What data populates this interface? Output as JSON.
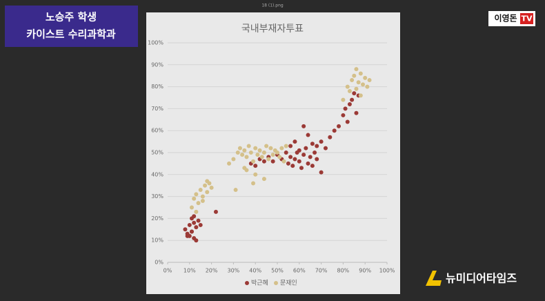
{
  "window_title": "18 (1).png",
  "caption": {
    "name": "노승주 학생",
    "department": "카이스트 수리과학과"
  },
  "channel_logo": {
    "name": "이영돈",
    "tv": "TV"
  },
  "watermark": "뉴미디어타임즈",
  "chart_data": {
    "type": "scatter",
    "title": "국내부재자투표",
    "xlim": [
      0,
      100
    ],
    "ylim": [
      0,
      100
    ],
    "xticks": [
      {
        "value": 0,
        "label": "0%"
      },
      {
        "value": 10,
        "label": "10%"
      },
      {
        "value": 20,
        "label": "20%"
      },
      {
        "value": 30,
        "label": "30%"
      },
      {
        "value": 40,
        "label": "40%"
      },
      {
        "value": 50,
        "label": "50%"
      },
      {
        "value": 60,
        "label": "60%"
      },
      {
        "value": 70,
        "label": "70%"
      },
      {
        "value": 80,
        "label": "80%"
      },
      {
        "value": 90,
        "label": "90%"
      },
      {
        "value": 100,
        "label": "100%"
      }
    ],
    "yticks": [
      {
        "value": 0,
        "label": "0%"
      },
      {
        "value": 10,
        "label": "10%"
      },
      {
        "value": 20,
        "label": "20%"
      },
      {
        "value": 30,
        "label": "30%"
      },
      {
        "value": 40,
        "label": "40%"
      },
      {
        "value": 50,
        "label": "50%"
      },
      {
        "value": 60,
        "label": "60%"
      },
      {
        "value": 70,
        "label": "70%"
      },
      {
        "value": 80,
        "label": "80%"
      },
      {
        "value": 90,
        "label": "90%"
      },
      {
        "value": 100,
        "label": "100%"
      }
    ],
    "grid": true,
    "series": [
      {
        "name": "박근혜",
        "color": "#9b3a36",
        "x": [
          8,
          9,
          10,
          10,
          11,
          11,
          12,
          12,
          13,
          13,
          14,
          15,
          9,
          12,
          11,
          22,
          38,
          40,
          42,
          44,
          46,
          48,
          50,
          52,
          54,
          55,
          56,
          57,
          58,
          59,
          60,
          61,
          62,
          63,
          64,
          65,
          66,
          67,
          68,
          70,
          72,
          74,
          76,
          56,
          58,
          60,
          62,
          64,
          66,
          68,
          70,
          78,
          80,
          81,
          82,
          83,
          84,
          85,
          86,
          87
        ],
        "values": [
          15,
          13,
          17,
          12,
          20,
          14,
          11,
          18,
          16,
          10,
          19,
          17,
          12,
          21,
          14,
          23,
          45,
          44,
          47,
          46,
          48,
          46,
          49,
          47,
          50,
          45,
          48,
          44,
          47,
          50,
          46,
          43,
          49,
          52,
          45,
          48,
          44,
          50,
          53,
          55,
          52,
          57,
          60,
          53,
          55,
          51,
          62,
          58,
          54,
          47,
          41,
          62,
          67,
          70,
          64,
          72,
          74,
          77,
          68,
          76
        ]
      },
      {
        "name": "문재인",
        "color": "#d4c08a",
        "x": [
          11,
          12,
          13,
          14,
          15,
          16,
          17,
          18,
          19,
          20,
          13,
          16,
          18,
          28,
          30,
          32,
          33,
          34,
          35,
          36,
          37,
          38,
          39,
          40,
          41,
          42,
          43,
          44,
          45,
          46,
          47,
          48,
          49,
          50,
          51,
          52,
          53,
          54,
          36,
          40,
          44,
          31,
          35,
          39,
          80,
          82,
          83,
          84,
          85,
          86,
          87,
          88,
          89,
          90,
          91,
          92,
          86,
          88
        ],
        "values": [
          25,
          29,
          31,
          27,
          33,
          30,
          35,
          32,
          36,
          34,
          23,
          28,
          37,
          45,
          47,
          50,
          52,
          49,
          51,
          48,
          53,
          50,
          46,
          52,
          49,
          51,
          48,
          50,
          53,
          47,
          52,
          49,
          51,
          50,
          48,
          52,
          46,
          53,
          42,
          40,
          38,
          33,
          43,
          36,
          74,
          80,
          78,
          83,
          85,
          79,
          82,
          86,
          81,
          84,
          80,
          83,
          88,
          76
        ]
      }
    ]
  }
}
